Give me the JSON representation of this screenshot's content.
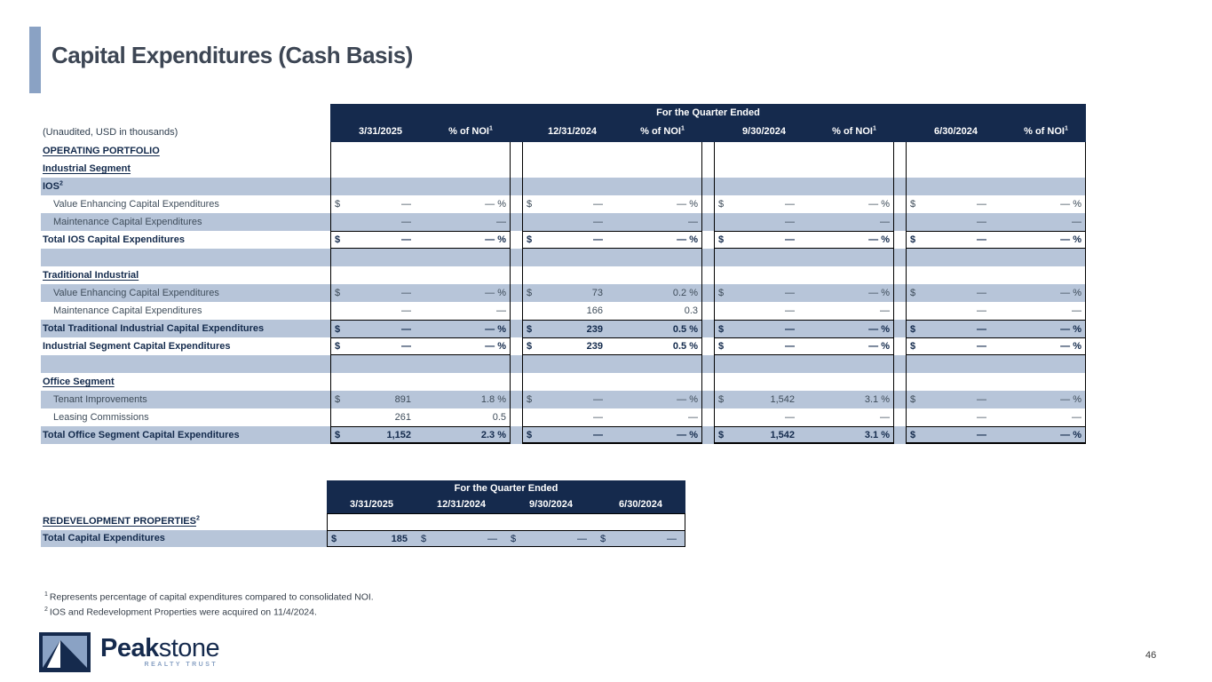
{
  "slide": {
    "title": "Capital Expenditures (Cash Basis)",
    "page_number": "46"
  },
  "colors": {
    "header_navy": "#152a4d",
    "row_shade": "#b7c5d9",
    "accent_bar": "#8aa2c4",
    "title_text": "#3d4654"
  },
  "main_table": {
    "unaudited_note": "(Unaudited, USD in thousands)",
    "header_title": "For the Quarter Ended",
    "quarters": [
      "3/31/2025",
      "12/31/2024",
      "9/30/2024",
      "6/30/2024"
    ],
    "pct_of_noi_label": "% of NOI",
    "pct_of_noi_sup": "1",
    "rows": [
      {
        "label": "OPERATING PORTFOLIO",
        "sup": "",
        "type": "section",
        "underline": true,
        "shaded": false,
        "top_border": false,
        "bottom_border": false,
        "cells": null
      },
      {
        "label": "Industrial Segment",
        "sup": "",
        "type": "section",
        "underline": true,
        "shaded": false,
        "top_border": false,
        "bottom_border": false,
        "cells": null
      },
      {
        "label": "IOS",
        "sup": "2",
        "type": "section",
        "underline": false,
        "shaded": true,
        "top_border": false,
        "bottom_border": false,
        "cells": null
      },
      {
        "label": "Value Enhancing Capital Expenditures",
        "sup": "",
        "type": "detail",
        "underline": false,
        "shaded": false,
        "top_border": false,
        "bottom_border": false,
        "cells": [
          {
            "d": "$",
            "a": "—",
            "p": "— %"
          },
          {
            "d": "$",
            "a": "—",
            "p": "— %"
          },
          {
            "d": "$",
            "a": "—",
            "p": "— %"
          },
          {
            "d": "$",
            "a": "—",
            "p": "— %"
          }
        ]
      },
      {
        "label": "Maintenance Capital Expenditures",
        "sup": "",
        "type": "detail",
        "underline": false,
        "shaded": true,
        "top_border": false,
        "bottom_border": false,
        "cells": [
          {
            "d": "",
            "a": "—",
            "p": "—"
          },
          {
            "d": "",
            "a": "—",
            "p": "—"
          },
          {
            "d": "",
            "a": "—",
            "p": "—"
          },
          {
            "d": "",
            "a": "—",
            "p": "—"
          }
        ]
      },
      {
        "label": "Total IOS Capital Expenditures",
        "sup": "",
        "type": "total",
        "underline": false,
        "shaded": false,
        "top_border": true,
        "bottom_border": true,
        "cells": [
          {
            "d": "$",
            "a": "—",
            "p": "— %"
          },
          {
            "d": "$",
            "a": "—",
            "p": "— %"
          },
          {
            "d": "$",
            "a": "—",
            "p": "— %"
          },
          {
            "d": "$",
            "a": "—",
            "p": "— %"
          }
        ]
      },
      {
        "label": "",
        "sup": "",
        "type": "blank",
        "underline": false,
        "shaded": true,
        "top_border": false,
        "bottom_border": false,
        "cells": null
      },
      {
        "label": "Traditional Industrial",
        "sup": "",
        "type": "section",
        "underline": true,
        "shaded": false,
        "top_border": false,
        "bottom_border": false,
        "cells": null
      },
      {
        "label": "Value Enhancing Capital Expenditures",
        "sup": "",
        "type": "detail",
        "underline": false,
        "shaded": true,
        "top_border": false,
        "bottom_border": false,
        "cells": [
          {
            "d": "$",
            "a": "—",
            "p": "— %"
          },
          {
            "d": "$",
            "a": "73",
            "p": "0.2 %"
          },
          {
            "d": "$",
            "a": "—",
            "p": "— %"
          },
          {
            "d": "$",
            "a": "—",
            "p": "— %"
          }
        ]
      },
      {
        "label": "Maintenance Capital Expenditures",
        "sup": "",
        "type": "detail",
        "underline": false,
        "shaded": false,
        "top_border": false,
        "bottom_border": false,
        "cells": [
          {
            "d": "",
            "a": "—",
            "p": "—"
          },
          {
            "d": "",
            "a": "166",
            "p": "0.3"
          },
          {
            "d": "",
            "a": "—",
            "p": "—"
          },
          {
            "d": "",
            "a": "—",
            "p": "—"
          }
        ]
      },
      {
        "label": "Total Traditional Industrial Capital Expenditures",
        "sup": "",
        "type": "total",
        "underline": false,
        "shaded": true,
        "top_border": true,
        "bottom_border": false,
        "cells": [
          {
            "d": "$",
            "a": "—",
            "p": "— %"
          },
          {
            "d": "$",
            "a": "239",
            "p": "0.5 %"
          },
          {
            "d": "$",
            "a": "—",
            "p": "— %"
          },
          {
            "d": "$",
            "a": "—",
            "p": "— %"
          }
        ]
      },
      {
        "label": "Industrial Segment Capital Expenditures",
        "sup": "",
        "type": "total",
        "underline": false,
        "shaded": false,
        "top_border": true,
        "bottom_border": true,
        "cells": [
          {
            "d": "$",
            "a": "—",
            "p": "— %"
          },
          {
            "d": "$",
            "a": "239",
            "p": "0.5 %"
          },
          {
            "d": "$",
            "a": "—",
            "p": "— %"
          },
          {
            "d": "$",
            "a": "—",
            "p": "— %"
          }
        ]
      },
      {
        "label": "",
        "sup": "",
        "type": "blank",
        "underline": false,
        "shaded": true,
        "top_border": false,
        "bottom_border": false,
        "cells": null
      },
      {
        "label": "Office Segment",
        "sup": "",
        "type": "section",
        "underline": true,
        "shaded": false,
        "top_border": false,
        "bottom_border": false,
        "cells": null
      },
      {
        "label": "Tenant Improvements",
        "sup": "",
        "type": "detail",
        "underline": false,
        "shaded": true,
        "top_border": false,
        "bottom_border": false,
        "cells": [
          {
            "d": "$",
            "a": "891",
            "p": "1.8 %"
          },
          {
            "d": "$",
            "a": "—",
            "p": "— %"
          },
          {
            "d": "$",
            "a": "1,542",
            "p": "3.1 %"
          },
          {
            "d": "$",
            "a": "—",
            "p": "— %"
          }
        ]
      },
      {
        "label": "Leasing Commissions",
        "sup": "",
        "type": "detail",
        "underline": false,
        "shaded": false,
        "top_border": false,
        "bottom_border": false,
        "cells": [
          {
            "d": "",
            "a": "261",
            "p": "0.5"
          },
          {
            "d": "",
            "a": "—",
            "p": "—"
          },
          {
            "d": "",
            "a": "—",
            "p": "—"
          },
          {
            "d": "",
            "a": "—",
            "p": "—"
          }
        ]
      },
      {
        "label": "Total Office Segment Capital Expenditures",
        "sup": "",
        "type": "total",
        "underline": false,
        "shaded": true,
        "top_border": true,
        "bottom_border": false,
        "cells": [
          {
            "d": "$",
            "a": "1,152",
            "p": "2.3 %"
          },
          {
            "d": "$",
            "a": "—",
            "p": "— %"
          },
          {
            "d": "$",
            "a": "1,542",
            "p": "3.1 %"
          },
          {
            "d": "$",
            "a": "—",
            "p": "— %"
          }
        ]
      }
    ]
  },
  "redevelopment_table": {
    "header_title": "For the Quarter Ended",
    "quarters": [
      "3/31/2025",
      "12/31/2024",
      "9/30/2024",
      "6/30/2024"
    ],
    "section_label": "REDEVELOPMENT PROPERTIES",
    "section_sup": "2",
    "total_row": {
      "label": "Total Capital Expenditures",
      "cells": [
        {
          "d": "$",
          "a": "185",
          "bold": true
        },
        {
          "d": "$",
          "a": "—",
          "bold": false
        },
        {
          "d": "$",
          "a": "—",
          "bold": false
        },
        {
          "d": "$",
          "a": "—",
          "bold": false
        }
      ]
    }
  },
  "footnotes": [
    {
      "sup": "1",
      "text": "Represents percentage of capital expenditures compared to consolidated NOI."
    },
    {
      "sup": "2",
      "text": "IOS and Redevelopment Properties were acquired on 11/4/2024."
    }
  ],
  "logo": {
    "name_bold": "Peak",
    "name_light": "stone",
    "tagline": "REALTY TRUST"
  }
}
